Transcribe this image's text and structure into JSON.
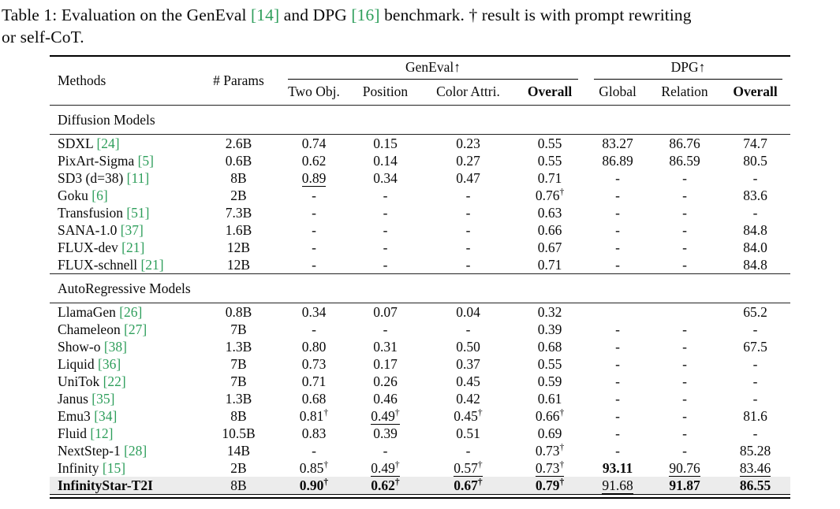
{
  "colors": {
    "cite_green": "#2e9e5b",
    "highlight_row": "#ececec",
    "text": "#0a0a0a"
  },
  "symbols": {
    "dagger": "†",
    "up_arrow": "↑"
  },
  "caption": {
    "lines": [
      [
        {
          "text": "Table 1: Evaluation on the GenEval "
        },
        {
          "text": "[14]",
          "green": true
        },
        {
          "text": " and DPG "
        },
        {
          "text": "[16]",
          "green": true
        },
        {
          "text": " benchmark. † result is with prompt rewriting"
        }
      ],
      [
        {
          "text": "or self-CoT."
        }
      ]
    ]
  },
  "table": {
    "group_headers": [
      {
        "label": "GenEval↑",
        "span": 4
      },
      {
        "label": "DPG↑",
        "span": 3
      }
    ],
    "columns": [
      "Methods",
      "# Params",
      "Two Obj.",
      "Position",
      "Color Attri.",
      "Overall",
      "Global",
      "Relation",
      "Overall"
    ],
    "bold_columns": [
      5,
      8
    ],
    "sections": [
      {
        "title": "Diffusion Models",
        "rows": [
          {
            "method": "SDXL",
            "cite": "[24]",
            "params": "2.6B",
            "cells": [
              "0.74",
              "0.15",
              "0.23",
              "0.55",
              "83.27",
              "86.76",
              "74.7"
            ]
          },
          {
            "method": "PixArt-Sigma",
            "cite": "[5]",
            "params": "0.6B",
            "cells": [
              "0.62",
              "0.14",
              "0.27",
              "0.55",
              "86.89",
              "86.59",
              "80.5"
            ]
          },
          {
            "method": "SD3 (d=38)",
            "cite": "[11]",
            "params": "8B",
            "cells": [
              {
                "v": "0.89",
                "u": true
              },
              "0.34",
              "0.47",
              "0.71",
              "-",
              "-",
              "-"
            ]
          },
          {
            "method": "Goku",
            "cite": "[6]",
            "params": "2B",
            "cells": [
              "-",
              "-",
              "-",
              {
                "v": "0.76",
                "d": true
              },
              "-",
              "-",
              "83.6"
            ]
          },
          {
            "method": "Transfusion",
            "cite": "[51]",
            "params": "7.3B",
            "cells": [
              "-",
              "-",
              "-",
              "0.63",
              "-",
              "-",
              "-"
            ]
          },
          {
            "method": "SANA-1.0",
            "cite": "[37]",
            "params": "1.6B",
            "cells": [
              "-",
              "-",
              "-",
              "0.66",
              "-",
              "-",
              "84.8"
            ]
          },
          {
            "method": "FLUX-dev",
            "cite": "[21]",
            "params": "12B",
            "cells": [
              "-",
              "-",
              "-",
              "0.67",
              "-",
              "-",
              "84.0"
            ]
          },
          {
            "method": "FLUX-schnell",
            "cite": "[21]",
            "params": "12B",
            "cells": [
              "-",
              "-",
              "-",
              "0.71",
              "-",
              "-",
              "84.8"
            ]
          }
        ]
      },
      {
        "title": "AutoRegressive Models",
        "rows": [
          {
            "method": "LlamaGen",
            "cite": "[26]",
            "params": "0.8B",
            "cells": [
              "0.34",
              "0.07",
              "0.04",
              "0.32",
              "",
              "",
              "65.2"
            ]
          },
          {
            "method": "Chameleon",
            "cite": "[27]",
            "params": "7B",
            "cells": [
              "-",
              "-",
              "-",
              "0.39",
              "-",
              "-",
              "-"
            ]
          },
          {
            "method": "Show-o",
            "cite": "[38]",
            "params": "1.3B",
            "cells": [
              "0.80",
              "0.31",
              "0.50",
              "0.68",
              "-",
              "-",
              "67.5"
            ]
          },
          {
            "method": "Liquid",
            "cite": "[36]",
            "params": "7B",
            "cells": [
              "0.73",
              "0.17",
              "0.37",
              "0.55",
              "-",
              "-",
              "-"
            ]
          },
          {
            "method": "UniTok",
            "cite": "[22]",
            "params": "7B",
            "cells": [
              "0.71",
              "0.26",
              "0.45",
              "0.59",
              "-",
              "-",
              "-"
            ]
          },
          {
            "method": "Janus",
            "cite": "[35]",
            "params": "1.3B",
            "cells": [
              "0.68",
              "0.46",
              "0.42",
              "0.61",
              "-",
              "-",
              "-"
            ]
          },
          {
            "method": "Emu3",
            "cite": "[34]",
            "params": "8B",
            "cells": [
              {
                "v": "0.81",
                "d": true
              },
              {
                "v": "0.49",
                "d": true,
                "u": true
              },
              {
                "v": "0.45",
                "d": true
              },
              {
                "v": "0.66",
                "d": true
              },
              "-",
              "-",
              "81.6"
            ]
          },
          {
            "method": "Fluid",
            "cite": "[12]",
            "params": "10.5B",
            "cells": [
              "0.83",
              "0.39",
              "0.51",
              "0.69",
              "-",
              "-",
              "-"
            ]
          },
          {
            "method": "NextStep-1",
            "cite": "[28]",
            "params": "14B",
            "cells": [
              "-",
              "-",
              "-",
              {
                "v": "0.73",
                "d": true
              },
              "-",
              "-",
              "85.28"
            ]
          },
          {
            "method": "Infinity",
            "cite": "[15]",
            "params": "2B",
            "cells": [
              {
                "v": "0.85",
                "d": true
              },
              {
                "v": "0.49",
                "d": true,
                "u": true
              },
              {
                "v": "0.57",
                "d": true,
                "u": true
              },
              {
                "v": "0.73",
                "d": true,
                "u": true
              },
              {
                "v": "93.11",
                "b": true
              },
              {
                "v": "90.76",
                "u": true
              },
              {
                "v": "83.46",
                "u": true
              }
            ]
          },
          {
            "method": "InfinityStar-T2I",
            "cite": "",
            "params": "8B",
            "bold_method": true,
            "highlight": true,
            "cells": [
              {
                "v": "0.90",
                "d": true,
                "b": true
              },
              {
                "v": "0.62",
                "d": true,
                "b": true
              },
              {
                "v": "0.67",
                "d": true,
                "b": true
              },
              {
                "v": "0.79",
                "d": true,
                "b": true
              },
              {
                "v": "91.68",
                "u": true
              },
              {
                "v": "91.87",
                "b": true
              },
              {
                "v": "86.55",
                "b": true
              }
            ]
          }
        ]
      }
    ]
  }
}
